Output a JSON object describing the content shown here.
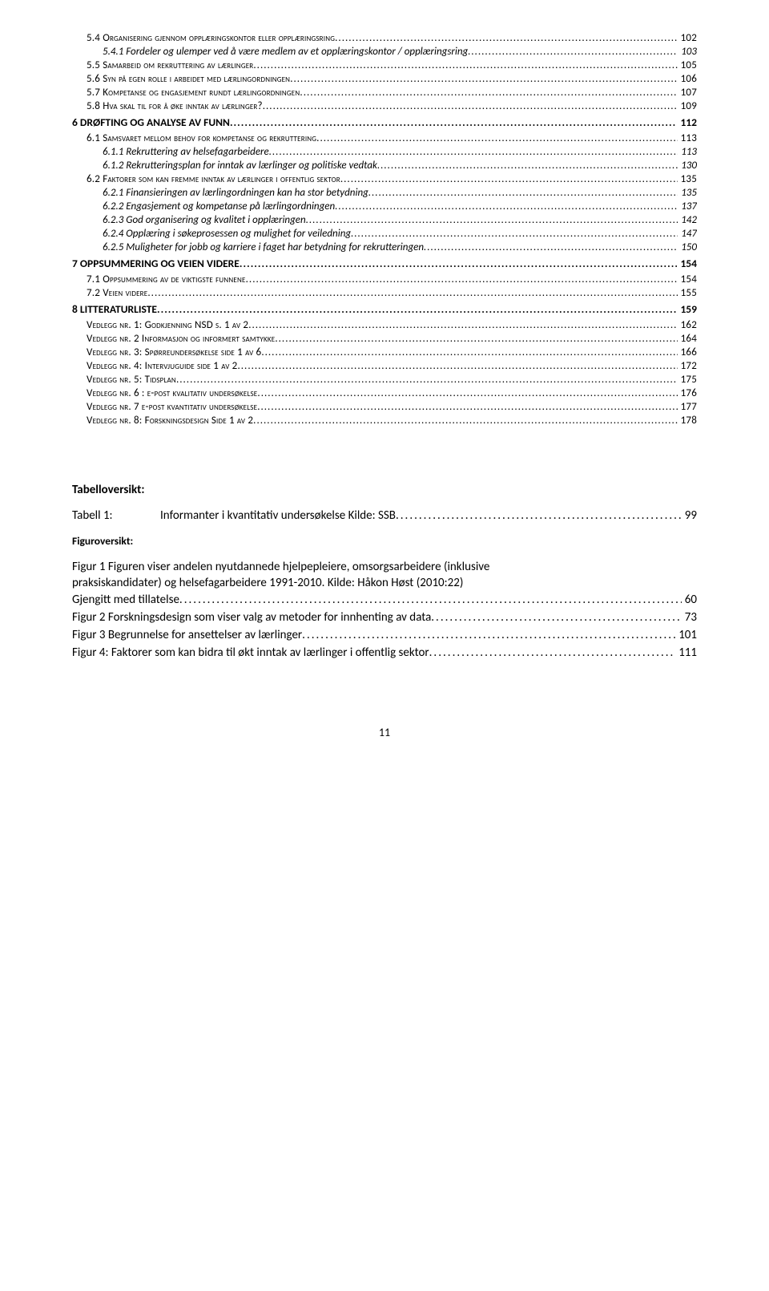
{
  "toc": [
    {
      "cls": "lvl-a",
      "num": "5.4",
      "text": "Organisering gjennom opplæringskontor eller opplæringsring",
      "page": "102"
    },
    {
      "cls": "lvl-b",
      "num": "5.4.1",
      "text": "Fordeler og ulemper ved å være medlem av et opplæringskontor / opplæringsring",
      "page": "103"
    },
    {
      "cls": "lvl-a",
      "num": "5.5",
      "text": "Samarbeid om rekruttering av lærlinger",
      "page": "105"
    },
    {
      "cls": "lvl-a",
      "num": "5.6",
      "text": "Syn på egen rolle i arbeidet med lærlingordningen",
      "page": "106"
    },
    {
      "cls": "lvl-a",
      "num": "5.7",
      "text": "Kompetanse og engasjement rundt lærlingordningen",
      "page": "107"
    },
    {
      "cls": "lvl-a",
      "num": "5.8",
      "text": "Hva skal til for å øke inntak av lærlinger?",
      "page": "109"
    },
    {
      "cls": "lvl-top",
      "num": "6",
      "text": "DRØFTING OG ANALYSE AV FUNN",
      "page": "112"
    },
    {
      "cls": "lvl-a",
      "num": "6.1",
      "text": "Samsvaret mellom behov for kompetanse og rekruttering",
      "page": "113"
    },
    {
      "cls": "lvl-b",
      "num": "6.1.1",
      "text": "Rekruttering av helsefagarbeidere",
      "page": "113"
    },
    {
      "cls": "lvl-b",
      "num": "6.1.2",
      "text": "Rekrutteringsplan for inntak av lærlinger og politiske vedtak",
      "page": "130"
    },
    {
      "cls": "lvl-a",
      "num": "6.2",
      "text": "Faktorer som kan fremme inntak av lærlinger i offentlig sektor",
      "page": "135"
    },
    {
      "cls": "lvl-b",
      "num": "6.2.1",
      "text": "Finansieringen av lærlingordningen kan ha stor betydning",
      "page": "135"
    },
    {
      "cls": "lvl-b",
      "num": "6.2.2",
      "text": "Engasjement og kompetanse på lærlingordningen",
      "page": "137"
    },
    {
      "cls": "lvl-b",
      "num": "6.2.3",
      "text": "God organisering og kvalitet i opplæringen",
      "page": "142"
    },
    {
      "cls": "lvl-b",
      "num": "6.2.4",
      "text": "Opplæring i søkeprosessen og mulighet for veiledning",
      "page": "147"
    },
    {
      "cls": "lvl-b",
      "num": "6.2.5",
      "text": "Muligheter for jobb og karriere i faget har betydning for rekrutteringen",
      "page": "150"
    },
    {
      "cls": "lvl-top",
      "num": "7",
      "text": "OPPSUMMERING OG VEIEN VIDERE",
      "page": "154"
    },
    {
      "cls": "lvl-a",
      "num": "7.1",
      "text": "Oppsummering av de viktigste funnene",
      "page": "154"
    },
    {
      "cls": "lvl-a",
      "num": "7.2",
      "text": "Veien videre",
      "page": "155"
    },
    {
      "cls": "lvl-top",
      "num": "8",
      "text": "LITTERATURLISTE",
      "page": "159"
    },
    {
      "cls": "lvl-v",
      "num": "",
      "text": "Vedlegg nr. 1: Godkjenning NSD s. 1 av 2",
      "page": "162"
    },
    {
      "cls": "lvl-v",
      "num": "",
      "text": "Vedlegg nr. 2 Informasjon og informert samtykke",
      "page": "164"
    },
    {
      "cls": "lvl-v",
      "num": "",
      "text": "Vedlegg  nr. 3: Spørreundersøkelse  side 1 av 6",
      "page": "166"
    },
    {
      "cls": "lvl-v",
      "num": "",
      "text": "Vedlegg nr. 4: Intervjuguide  side 1 av 2",
      "page": "172"
    },
    {
      "cls": "lvl-v",
      "num": "",
      "text": "Vedlegg nr. 5: Tidsplan",
      "page": "175"
    },
    {
      "cls": "lvl-v",
      "num": "",
      "text": "Vedlegg nr. 6 : e-post kvalitativ undersøkelse",
      "page": "176"
    },
    {
      "cls": "lvl-v",
      "num": "",
      "text": "Vedlegg nr. 7 e-post kvantitativ undersøkelse",
      "page": "177"
    },
    {
      "cls": "lvl-v",
      "num": "",
      "text": "Vedlegg nr. 8: Forskningsdesign Side 1 av 2",
      "page": "178"
    }
  ],
  "tabell_heading": "Tabelloversikt:",
  "tabell": {
    "key": "Tabell 1:",
    "text": "Informanter i kvantitativ undersøkelse Kilde: SSB",
    "page": "99"
  },
  "figur_heading": "Figuroversikt:",
  "figures": [
    {
      "lines": [
        "Figur 1 Figuren viser andelen nyutdannede hjelpepleiere, omsorgsarbeidere (inklusive",
        "praksiskandidater) og helsefagarbeidere 1991-2010. Kilde: Håkon Høst (2010:22)"
      ],
      "last": "Gjengitt med tillatelse",
      "page": "60"
    },
    {
      "lines": [],
      "last": "Figur 2 Forskningsdesign som viser valg av metoder for innhenting av data",
      "page": "73"
    },
    {
      "lines": [],
      "last": "Figur 3 Begrunnelse for ansettelser av lærlinger",
      "page": "101"
    },
    {
      "lines": [],
      "last": "Figur 4: Faktorer som kan bidra til økt inntak av lærlinger i offentlig sektor",
      "page": "111"
    }
  ],
  "page_number": "11"
}
